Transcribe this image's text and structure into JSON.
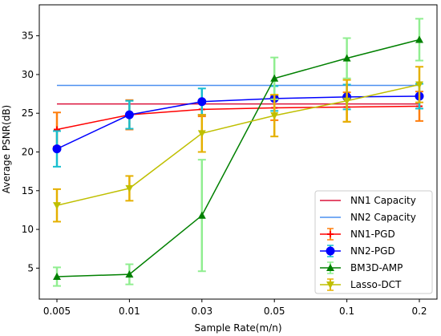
{
  "chart_data": {
    "type": "line",
    "title": "",
    "xlabel": "Sample Rate(m/n)",
    "ylabel": "Average PSNR(dB)",
    "x": [
      "0.005",
      "0.01",
      "0.03",
      "0.05",
      "0.1",
      "0.2"
    ],
    "x_scale": "categorical",
    "ylim": [
      1.0,
      39.0
    ],
    "yticks": [
      5,
      10,
      15,
      20,
      25,
      30,
      35
    ],
    "grid": false,
    "legend_position": "lower-right",
    "series": [
      {
        "name": "NN1 Capacity",
        "kind": "hline",
        "y": 26.2,
        "color": "#dc143c"
      },
      {
        "name": "NN2 Capacity",
        "kind": "hline",
        "y": 28.6,
        "color": "#4c90f0"
      },
      {
        "name": "NN1-PGD",
        "marker": "plus",
        "color": "#ff0000",
        "err_color": "#ff7f0e",
        "values": [
          22.9,
          24.8,
          25.5,
          25.7,
          25.8,
          25.9
        ],
        "errors": [
          2.2,
          1.9,
          0.9,
          1.6,
          1.9,
          1.9
        ]
      },
      {
        "name": "NN2-PGD",
        "marker": "circle",
        "color": "#0000ff",
        "err_color": "#17becf",
        "values": [
          20.4,
          24.8,
          26.5,
          26.9,
          27.1,
          27.2
        ],
        "errors": [
          2.3,
          1.8,
          1.7,
          1.6,
          1.6,
          1.6
        ]
      },
      {
        "name": "BM3D-AMP",
        "marker": "triangle-up",
        "color": "#008000",
        "err_color": "#90ee90",
        "values": [
          3.9,
          4.2,
          11.8,
          29.5,
          32.1,
          34.5
        ],
        "errors": [
          1.2,
          1.3,
          7.2,
          2.7,
          2.6,
          2.7
        ]
      },
      {
        "name": "Lasso-DCT",
        "marker": "triangle-down",
        "color": "#bfbf00",
        "err_color": "#e5b000",
        "values": [
          13.1,
          15.3,
          22.4,
          24.7,
          26.6,
          28.7
        ],
        "errors": [
          2.1,
          1.6,
          2.4,
          2.7,
          2.7,
          2.3
        ]
      }
    ]
  }
}
